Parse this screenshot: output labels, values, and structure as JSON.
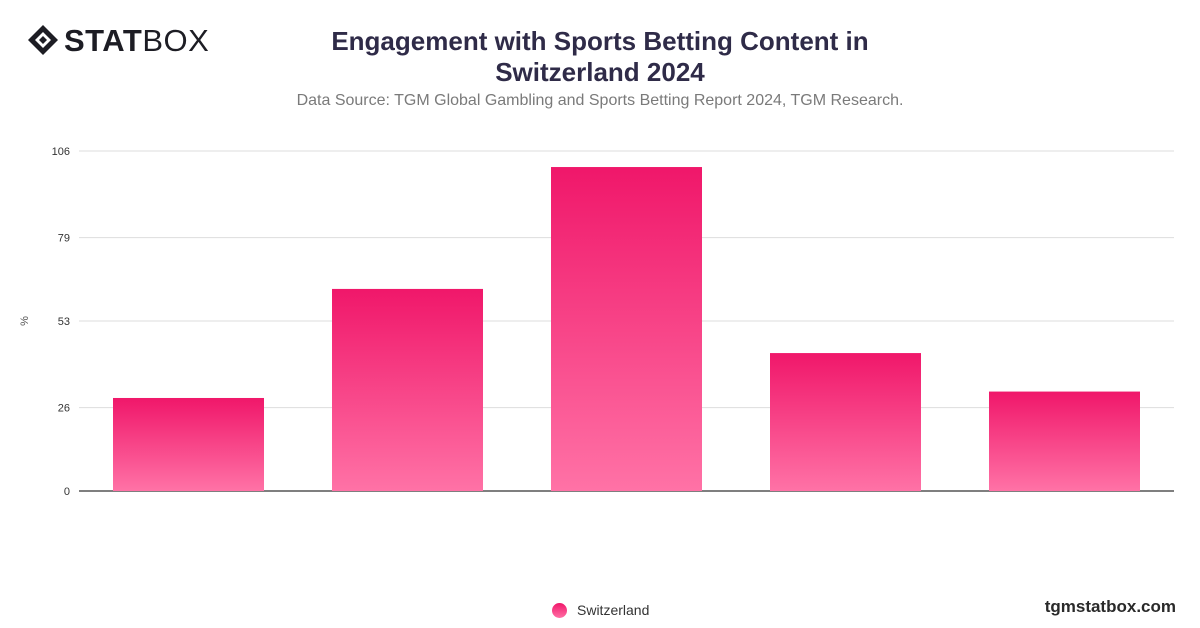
{
  "brand": {
    "logo_bold": "STAT",
    "logo_light": "BOX",
    "website": "tgmstatbox.com"
  },
  "chart_data": {
    "type": "bar",
    "title": "Engagement with Sports Betting Content in Switzerland 2024",
    "subtitle": "Data Source: TGM Global Gambling and Sports Betting Report 2024, TGM Research.",
    "ylabel": "%",
    "xlabel": "",
    "ylim": [
      0,
      106
    ],
    "yticks": [
      0,
      26,
      53,
      79,
      106
    ],
    "grid": true,
    "legend_position": "bottom-center",
    "series": [
      {
        "name": "Switzerland",
        "values": [
          29,
          63,
          101,
          43,
          31
        ]
      }
    ],
    "colors": {
      "bar_top": "#f0176a",
      "bar_bottom": "#ff72a6",
      "grid": "#dddddd",
      "axis": "#333333"
    }
  }
}
